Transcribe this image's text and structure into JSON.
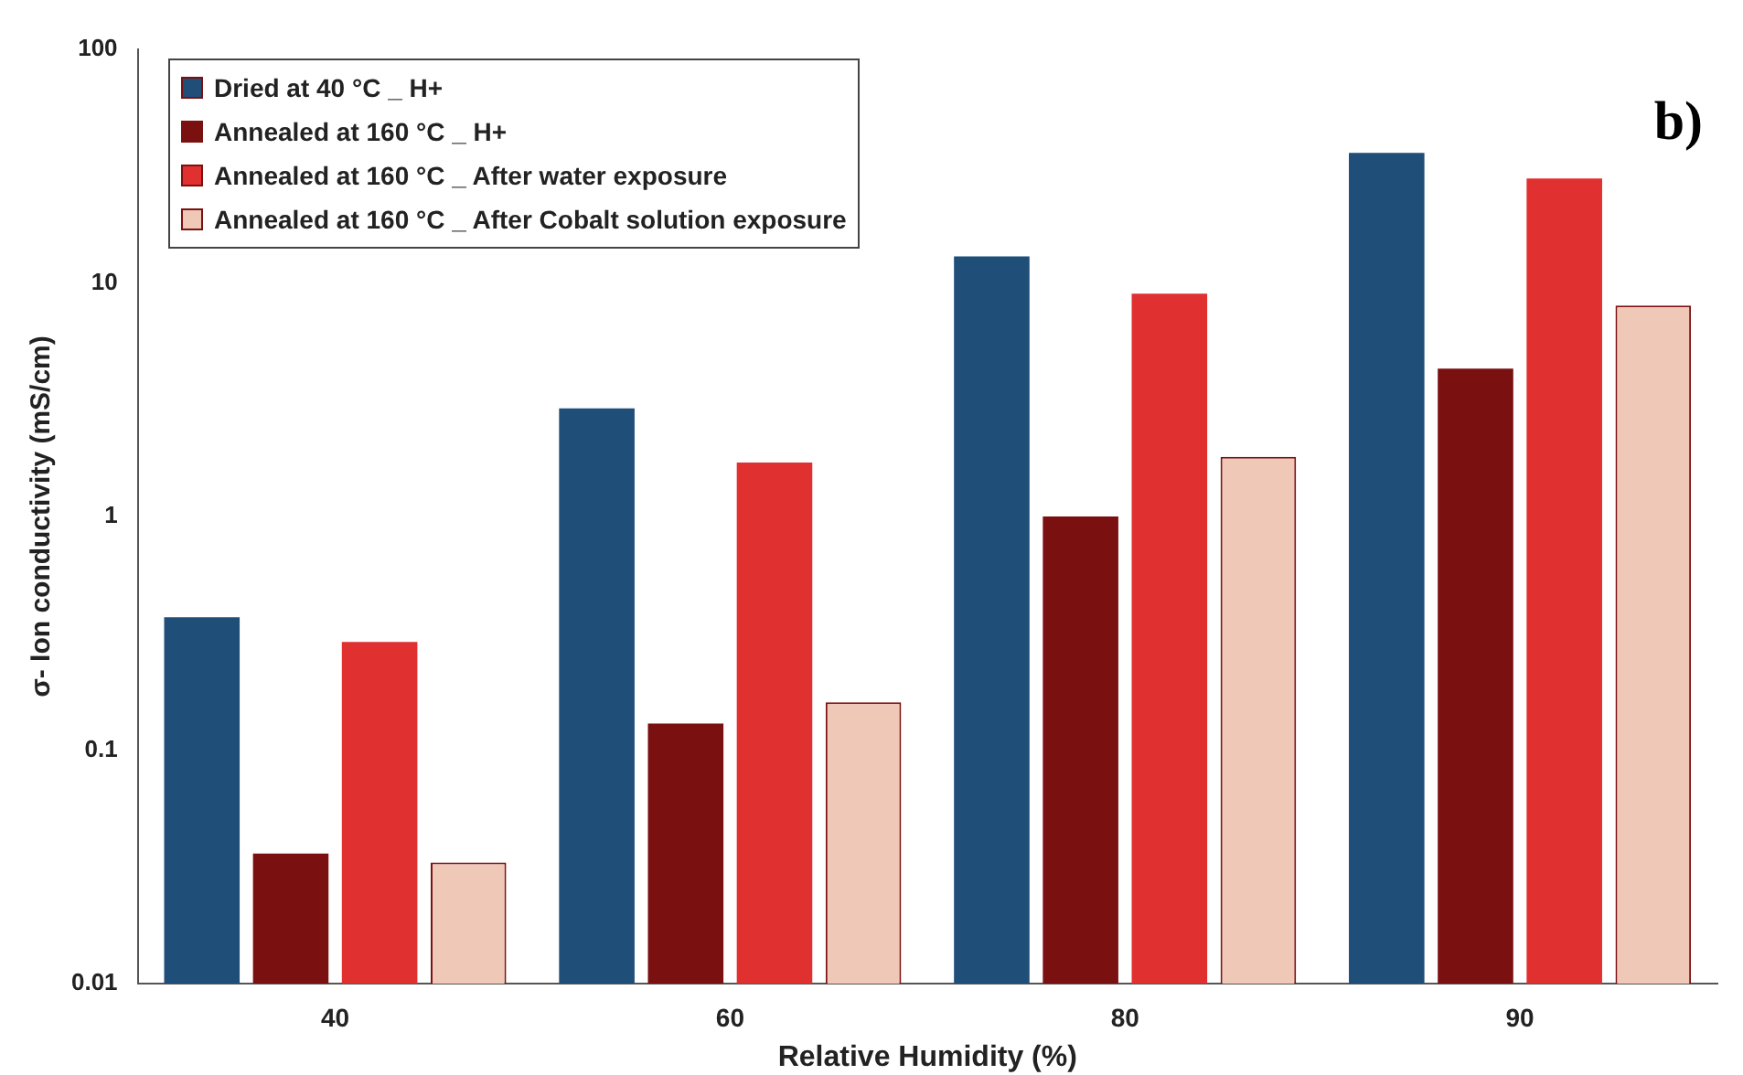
{
  "chart_data": {
    "type": "bar",
    "xlabel": "Relative Humidity (%)",
    "ylabel": "σ- Ion conductivity (mS/cm)",
    "categories": [
      "40",
      "60",
      "80",
      "90"
    ],
    "series": [
      {
        "name": "Dried at 40 °C _ H+",
        "color": "#1f4e79",
        "values": [
          0.37,
          2.9,
          13,
          36
        ]
      },
      {
        "name": "Annealed at 160 °C _ H+",
        "color": "#7b1010",
        "values": [
          0.036,
          0.13,
          1.0,
          4.3
        ]
      },
      {
        "name": "Annealed at 160 °C _ After water exposure",
        "color": "#e03030",
        "values": [
          0.29,
          1.7,
          9,
          28
        ]
      },
      {
        "name": "Annealed at 160 °C _ After Cobalt solution exposure",
        "color": "#f0c8b8",
        "values": [
          0.033,
          0.16,
          1.8,
          8
        ]
      }
    ],
    "log": "y",
    "ylim": [
      0.01,
      100
    ],
    "yticks": [
      0.01,
      0.1,
      1,
      10,
      100
    ],
    "grid": false,
    "legend": "top left",
    "annotations": [
      "b)"
    ]
  }
}
